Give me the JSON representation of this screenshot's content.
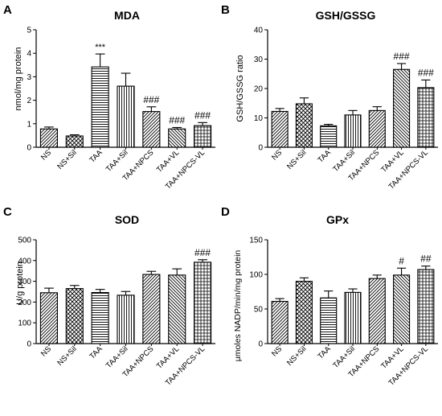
{
  "chart_data": [
    {
      "type": "bar",
      "panel_letter": "A",
      "title": "MDA",
      "ylabel": "nmol/mg protein",
      "xlabel": "",
      "ylim": [
        0,
        5
      ],
      "yticks": [
        0,
        1,
        2,
        3,
        4,
        5
      ],
      "categories": [
        "NS",
        "NS+Sil",
        "TAA",
        "TAA+Sil",
        "TAA+NPCS",
        "TAA+VL",
        "TAA+NPCS-VL"
      ],
      "values": [
        0.78,
        0.48,
        3.42,
        2.6,
        1.52,
        0.78,
        0.92
      ],
      "errors": [
        0.08,
        0.05,
        0.55,
        0.55,
        0.2,
        0.06,
        0.13
      ],
      "annotations": [
        "",
        "",
        "***",
        "",
        "###",
        "###",
        "###"
      ],
      "patterns": [
        "diag-right",
        "crosshatch",
        "horizontal",
        "vertical",
        "diag-right",
        "diag-left",
        "grid"
      ],
      "grid": false
    },
    {
      "type": "bar",
      "panel_letter": "B",
      "title": "GSH/GSSG",
      "ylabel": "GSH/GSSG ratio",
      "xlabel": "",
      "ylim": [
        0,
        40
      ],
      "yticks": [
        0,
        10,
        20,
        30,
        40
      ],
      "categories": [
        "NS",
        "NS+Sil",
        "TAA",
        "TAA+Sil",
        "TAA+NPCS",
        "TAA+VL",
        "TAA+NPCS-VL"
      ],
      "values": [
        12.2,
        14.8,
        7.3,
        11.0,
        12.5,
        26.5,
        20.3
      ],
      "errors": [
        1.0,
        2.0,
        0.5,
        1.5,
        1.3,
        2.0,
        2.6
      ],
      "annotations": [
        "",
        "",
        "",
        "",
        "",
        "###",
        "###"
      ],
      "patterns": [
        "diag-right",
        "crosshatch",
        "horizontal",
        "vertical",
        "diag-right",
        "diag-left",
        "grid"
      ],
      "grid": false
    },
    {
      "type": "bar",
      "panel_letter": "C",
      "title": "SOD",
      "ylabel": "U/g protein",
      "xlabel": "",
      "ylim": [
        0,
        500
      ],
      "yticks": [
        0,
        100,
        200,
        300,
        400,
        500
      ],
      "categories": [
        "NS",
        "NS+Sil",
        "TAA",
        "TAA+Sil",
        "TAA+NPCS",
        "TAA+VL",
        "TAA+NPCS-VL"
      ],
      "values": [
        245,
        265,
        246,
        233,
        333,
        330,
        392
      ],
      "errors": [
        22,
        15,
        15,
        18,
        15,
        30,
        12
      ],
      "annotations": [
        "",
        "",
        "",
        "",
        "",
        "",
        "###"
      ],
      "patterns": [
        "diag-right",
        "crosshatch",
        "horizontal",
        "vertical",
        "diag-right",
        "diag-left",
        "grid"
      ],
      "grid": false
    },
    {
      "type": "bar",
      "panel_letter": "D",
      "title": "GPx",
      "ylabel": "μmoles NADP/min/mg protein",
      "xlabel": "",
      "ylim": [
        0,
        150
      ],
      "yticks": [
        0,
        50,
        100,
        150
      ],
      "categories": [
        "NS",
        "NS+Sil",
        "TAA",
        "TAA+Sil",
        "TAA+NPCS",
        "TAA+VL",
        "TAA+NPCS-VL"
      ],
      "values": [
        61,
        90,
        66,
        74,
        94,
        99,
        107
      ],
      "errors": [
        4,
        5,
        10,
        5,
        5,
        10,
        5
      ],
      "annotations": [
        "",
        "",
        "",
        "",
        "",
        "#",
        "##"
      ],
      "patterns": [
        "diag-right",
        "crosshatch",
        "horizontal",
        "vertical",
        "diag-right",
        "diag-left",
        "grid"
      ],
      "grid": false
    }
  ]
}
